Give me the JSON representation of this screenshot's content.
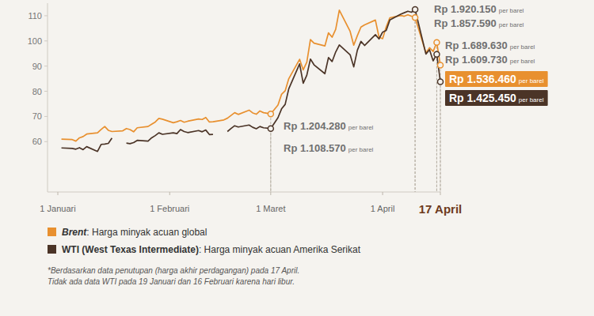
{
  "chart_data": {
    "type": "line",
    "x": [
      2,
      5,
      6,
      7,
      8,
      9,
      12,
      13,
      14,
      15,
      16,
      19,
      20,
      21,
      22,
      23,
      26,
      27,
      28,
      29,
      30,
      33,
      34,
      35,
      36,
      37,
      40,
      41,
      42,
      43,
      44,
      47,
      48,
      49,
      50,
      51,
      54,
      55,
      56,
      57,
      58,
      60,
      62,
      63,
      64,
      65,
      68,
      69,
      70,
      71,
      72,
      75,
      76,
      77,
      78,
      79,
      82,
      83,
      84,
      85,
      86,
      89,
      90,
      91,
      92,
      93,
      96,
      97,
      98,
      99,
      100,
      103,
      104,
      105,
      106,
      107
    ],
    "series": [
      {
        "name": "Brent",
        "description": ": Harga minyak acuan global",
        "color": "#e8902f",
        "values": [
          61.0,
          60.8,
          60.2,
          61.5,
          62.0,
          63.0,
          63.5,
          64.8,
          66.0,
          64.5,
          64.0,
          64.3,
          65.2,
          64.8,
          63.9,
          65.5,
          66.0,
          66.9,
          67.8,
          69.2,
          68.9,
          67.5,
          67.9,
          68.4,
          67.7,
          68.1,
          69.0,
          68.8,
          69.6,
          67.8,
          67.9,
          68.6,
          69.3,
          70.4,
          71.5,
          70.8,
          72.5,
          71.4,
          70.9,
          72.2,
          71.5,
          71.0,
          74.5,
          78.8,
          80.2,
          85.0,
          92.7,
          88.5,
          91.6,
          100.5,
          99.1,
          98.0,
          103.2,
          101.5,
          104.6,
          112.2,
          103.8,
          98.3,
          102.1,
          105.5,
          106.4,
          108.3,
          101.5,
          100.9,
          105.6,
          109.2,
          110.1,
          109.8,
          110.4,
          109.8,
          109.3,
          95.2,
          97.3,
          95.8,
          99.4,
          90.4
        ]
      },
      {
        "name": "WTI (West Texas Intermediate)",
        "description": ": Harga minyak acuan Amerika Serikat",
        "color": "#4b3427",
        "values": [
          57.5,
          57.3,
          57.0,
          57.6,
          56.8,
          58.0,
          56.1,
          58.9,
          59.0,
          59.3,
          61.4,
          null,
          59.4,
          59.2,
          59.6,
          60.5,
          60.2,
          61.5,
          62.4,
          63.5,
          62.9,
          63.5,
          63.2,
          64.8,
          64.0,
          63.6,
          64.4,
          63.9,
          64.6,
          62.8,
          62.9,
          null,
          64.0,
          65.2,
          66.3,
          65.8,
          66.6,
          65.7,
          65.1,
          66.0,
          65.5,
          65.2,
          69.5,
          73.0,
          74.8,
          81.0,
          90.9,
          83.2,
          86.4,
          92.8,
          90.5,
          87.0,
          93.4,
          91.8,
          95.6,
          98.4,
          94.5,
          89.7,
          96.3,
          99.8,
          98.2,
          102.5,
          100.8,
          103.5,
          104.2,
          108.3,
          110.6,
          111.2,
          111.8,
          111.4,
          112.5,
          94.8,
          96.5,
          92.1,
          94.7,
          83.8
        ]
      }
    ],
    "xlim": [
      1,
      107
    ],
    "xticks": [
      {
        "value": 1,
        "label": "1 Januari"
      },
      {
        "value": 32,
        "label": "1 Februari"
      },
      {
        "value": 60,
        "label": "1 Maret"
      },
      {
        "value": 91,
        "label": "1 April"
      },
      {
        "value": 107,
        "label": "17 April"
      }
    ],
    "ylim": [
      40,
      115
    ],
    "yticks": [
      60,
      70,
      80,
      90,
      100,
      110
    ],
    "grid": false,
    "annotations": [
      {
        "text": "Rp 1.920.150",
        "note": "per barel",
        "x": 100,
        "y": 112.5,
        "color": "#4b3427"
      },
      {
        "text": "Rp 1.857.590",
        "note": "per barel",
        "x": 100,
        "y": 109.3,
        "color": "#e8902f"
      },
      {
        "text": "Rp 1.689.630",
        "note": "per barel",
        "x": 106,
        "y": 99.4,
        "color": "#e8902f"
      },
      {
        "text": "Rp 1.609.730",
        "note": "per barel",
        "x": 106,
        "y": 94.7,
        "color": "#4b3427"
      },
      {
        "text": "Rp 1.536.460",
        "note": "per barel",
        "x": 107,
        "y": 90.4,
        "color": "#e8902f"
      },
      {
        "text": "Rp 1.425.450",
        "note": "per barel",
        "x": 107,
        "y": 83.8,
        "color": "#4b3427"
      },
      {
        "text": "Rp 1.204.280",
        "note": "per barel",
        "x": 60,
        "y": 71.0,
        "color": "#e8902f"
      },
      {
        "text": "Rp 1.108.570",
        "note": "per barel",
        "x": 60,
        "y": 65.2,
        "color": "#4b3427"
      }
    ],
    "notes": [
      "*Berdasarkan data penutupan (harga akhir perdagangan) pada 17 April.",
      "Tidak ada data WTI pada 19 Januari dan 16 Februari karena hari libur."
    ]
  }
}
